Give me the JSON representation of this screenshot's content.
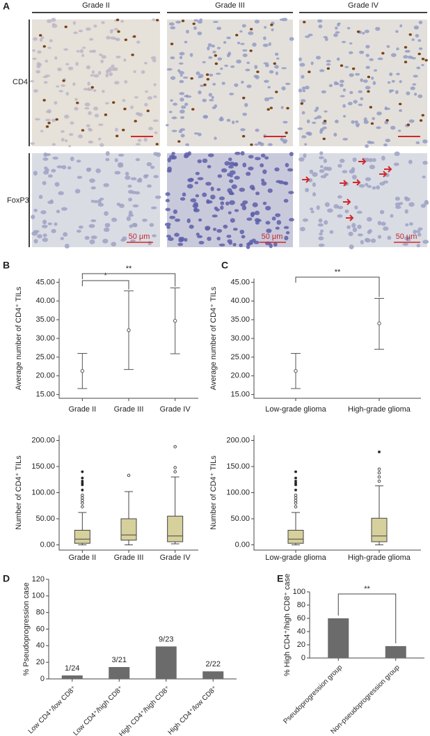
{
  "panel_labels": [
    "A",
    "B",
    "C",
    "D",
    "E"
  ],
  "panel_a": {
    "columns": [
      "Grade II",
      "Grade III",
      "Grade IV"
    ],
    "rows": [
      "CD4",
      "FoxP3"
    ],
    "scale_bar": "50 μm"
  },
  "chart_data": [
    {
      "type": "errorbar",
      "categories": [
        "Grade II",
        "Grade III",
        "Grade IV"
      ],
      "values": [
        21.3,
        32.2,
        34.7
      ],
      "lower": [
        16.6,
        21.7,
        25.9
      ],
      "upper": [
        26.0,
        42.7,
        43.5
      ],
      "ylabel": "Average number of CD4⁺ TILs",
      "ylim": [
        14,
        46
      ],
      "yticks": [
        {
          "value": 15,
          "label": "15.00"
        },
        {
          "value": 20,
          "label": "20.00"
        },
        {
          "value": 25,
          "label": "25.00"
        },
        {
          "value": 30,
          "label": "30.00"
        },
        {
          "value": 35,
          "label": "35.00"
        },
        {
          "value": 40,
          "label": "40.00"
        },
        {
          "value": 45,
          "label": "45.00"
        }
      ],
      "annotations": [
        "*",
        "**"
      ],
      "color": "#555555"
    },
    {
      "type": "errorbar",
      "categories": [
        "Low-grade glioma",
        "High-grade glioma"
      ],
      "values": [
        21.3,
        34.0
      ],
      "lower": [
        16.6,
        27.1
      ],
      "upper": [
        26.0,
        40.7
      ],
      "ylabel": "Average number of CD4⁺ TILs",
      "ylim": [
        14,
        46
      ],
      "yticks": [
        {
          "value": 15,
          "label": "15.00"
        },
        {
          "value": 20,
          "label": "20.00"
        },
        {
          "value": 25,
          "label": "25.00"
        },
        {
          "value": 30,
          "label": "30.00"
        },
        {
          "value": 35,
          "label": "35.00"
        },
        {
          "value": 40,
          "label": "40.00"
        },
        {
          "value": 45,
          "label": "45.00"
        }
      ],
      "annotations": [
        "**"
      ],
      "color": "#555555"
    },
    {
      "type": "box",
      "categories": [
        "Grade II",
        "Grade III",
        "Grade IV"
      ],
      "boxes": [
        {
          "min": 0,
          "q1": 3,
          "median": 11,
          "q3": 28,
          "max": 62,
          "outliers": [
            73,
            80,
            85,
            90,
            95
          ],
          "extremes": [
            105,
            115,
            118,
            122,
            128,
            140
          ]
        },
        {
          "min": 0,
          "q1": 9,
          "median": 19,
          "q3": 50,
          "max": 102,
          "outliers": [
            133
          ],
          "extremes": []
        },
        {
          "min": 2,
          "q1": 6,
          "median": 17,
          "q3": 55,
          "max": 130,
          "outliers": [
            140,
            148,
            188
          ],
          "extremes": []
        }
      ],
      "ylabel": "Number of CD4⁺ TILs",
      "ylim": [
        -10,
        210
      ],
      "yticks": [
        {
          "value": 0,
          "label": "0.00"
        },
        {
          "value": 50,
          "label": "50.00"
        },
        {
          "value": 100,
          "label": "100.00"
        },
        {
          "value": 150,
          "label": "150.00"
        },
        {
          "value": 200,
          "label": "200.00"
        }
      ],
      "color": "#d6d09c"
    },
    {
      "type": "box",
      "categories": [
        "Low-grade glioma",
        "High-grade glioma"
      ],
      "boxes": [
        {
          "min": 0,
          "q1": 3,
          "median": 11,
          "q3": 28,
          "max": 62,
          "outliers": [
            73,
            80,
            85,
            90,
            95
          ],
          "extremes": [
            105,
            115,
            118,
            122,
            128,
            140
          ]
        },
        {
          "min": 0,
          "q1": 6,
          "median": 17,
          "q3": 51,
          "max": 113,
          "outliers": [
            122,
            130,
            138,
            145
          ],
          "extremes": [
            178
          ]
        }
      ],
      "ylabel": "Number of CD4⁺ TILs",
      "ylim": [
        -10,
        210
      ],
      "yticks": [
        {
          "value": 0,
          "label": "0.00"
        },
        {
          "value": 50,
          "label": "50.00"
        },
        {
          "value": 100,
          "label": "100.00"
        },
        {
          "value": 150,
          "label": "150.00"
        },
        {
          "value": 200,
          "label": "200.00"
        }
      ],
      "color": "#d6d09c"
    },
    {
      "type": "bar",
      "categories": [
        "Low CD4⁺/low CD8⁺",
        "Low CD4⁺/high CD8⁺",
        "High CD4⁺/high CD8⁺",
        "High CD4⁺/low CD8⁺"
      ],
      "values": [
        4.17,
        14.29,
        39.13,
        9.09
      ],
      "value_labels": [
        "1/24",
        "3/21",
        "9/23",
        "2/22"
      ],
      "ylabel": "% Pseudoprogression case",
      "ylim": [
        0,
        120
      ],
      "yticks": [
        0,
        20,
        40,
        60,
        80,
        100,
        120
      ],
      "color": "#6b6b6b"
    },
    {
      "type": "bar",
      "categories": [
        "Pseudoprogression group",
        "Non-pseudoprogression group"
      ],
      "values": [
        60,
        18
      ],
      "ylabel": "% High CD4⁺/high CD8⁺ case",
      "ylim": [
        0,
        100
      ],
      "yticks": [
        0,
        20,
        40,
        60,
        80,
        100
      ],
      "annotations": [
        "**"
      ],
      "color": "#6b6b6b"
    }
  ]
}
